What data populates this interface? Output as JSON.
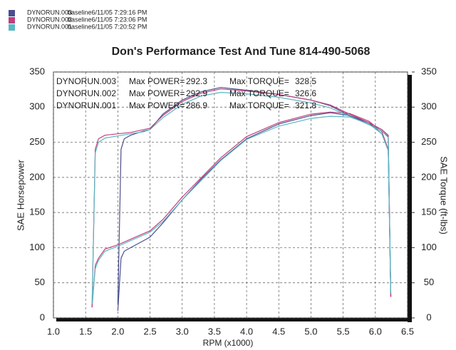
{
  "chart_data": {
    "type": "line",
    "title": "Don's Performance Test And Tune 814-490-5068",
    "x_label": "RPM (x1000)",
    "y_label": "SAE Horsepower",
    "y2_label": "SAE Torque (ft-lbs)",
    "power_label": "Max POWER=",
    "torque_label": "Max TORQUE=",
    "xlim": [
      1.0,
      6.5
    ],
    "xticks": [
      {
        "value": 1,
        "label": "1.0"
      },
      1.5,
      {
        "value": 2,
        "label": "2.0"
      },
      2.5,
      {
        "value": 3,
        "label": "3.0"
      },
      3.5,
      {
        "value": 4,
        "label": "4.0"
      },
      4.5,
      {
        "value": 5,
        "label": "5.0"
      },
      5.5,
      {
        "value": 6,
        "label": "6.0"
      },
      6.5
    ],
    "ylim": [
      0,
      350
    ],
    "yticks": [
      0,
      50,
      100,
      150,
      200,
      250,
      300,
      350
    ],
    "y2lim": [
      0,
      350
    ],
    "y2ticks": [
      0,
      50,
      100,
      150,
      200,
      250,
      300,
      350
    ],
    "grid": true,
    "series": [
      {
        "name": "DYNORUN.003",
        "detail": "baseline6/11/05 7:29:16 PM",
        "color": "#4a4f8c",
        "max_power": 292.3,
        "max_torque": 328.5,
        "x": [
          2.0,
          2.05,
          2.1,
          2.2,
          2.4,
          2.5,
          2.7,
          3.0,
          3.3,
          3.6,
          4.0,
          4.5,
          5.0,
          5.3,
          5.6,
          5.9,
          6.1,
          6.2,
          6.24
        ],
        "horsepower": [
          10,
          85,
          95,
          100,
          110,
          115,
          135,
          168,
          198,
          225,
          255,
          276,
          288,
          292,
          288,
          278,
          262,
          240,
          30
        ],
        "torque": [
          20,
          240,
          255,
          260,
          266,
          268,
          290,
          310,
          322,
          328,
          324,
          318,
          310,
          302,
          288,
          276,
          266,
          258,
          30
        ]
      },
      {
        "name": "DYNORUN.002",
        "detail": "baseline6/11/05 7:23:06 PM",
        "color": "#c0407e",
        "max_power": 292.9,
        "max_torque": 326.6,
        "x": [
          1.6,
          1.65,
          1.7,
          1.8,
          2.0,
          2.2,
          2.4,
          2.5,
          2.7,
          3.0,
          3.3,
          3.6,
          4.0,
          4.5,
          5.0,
          5.3,
          5.6,
          5.9,
          6.1,
          6.2,
          6.24
        ],
        "horsepower": [
          15,
          75,
          85,
          98,
          104,
          112,
          120,
          124,
          140,
          172,
          200,
          228,
          258,
          278,
          290,
          293,
          291,
          280,
          265,
          240,
          30
        ],
        "torque": [
          15,
          240,
          255,
          260,
          262,
          264,
          268,
          270,
          288,
          308,
          320,
          326,
          323,
          318,
          310,
          303,
          290,
          278,
          268,
          260,
          30
        ]
      },
      {
        "name": "DYNORUN.001",
        "detail": "baseline6/11/05 7:20:52 PM",
        "color": "#5ab7c2",
        "max_power": 286.9,
        "max_torque": 321.8,
        "x": [
          1.6,
          1.65,
          1.7,
          1.8,
          2.0,
          2.2,
          2.4,
          2.5,
          2.7,
          3.0,
          3.3,
          3.6,
          4.0,
          4.5,
          5.0,
          5.3,
          5.6,
          5.9,
          6.1,
          6.2,
          6.24
        ],
        "horsepower": [
          20,
          70,
          82,
          95,
          102,
          110,
          118,
          122,
          137,
          168,
          196,
          224,
          254,
          273,
          284,
          287,
          286,
          276,
          262,
          238,
          35
        ],
        "torque": [
          20,
          235,
          250,
          256,
          259,
          262,
          265,
          268,
          285,
          304,
          316,
          321,
          319,
          314,
          306,
          299,
          287,
          275,
          266,
          257,
          35
        ]
      }
    ]
  }
}
